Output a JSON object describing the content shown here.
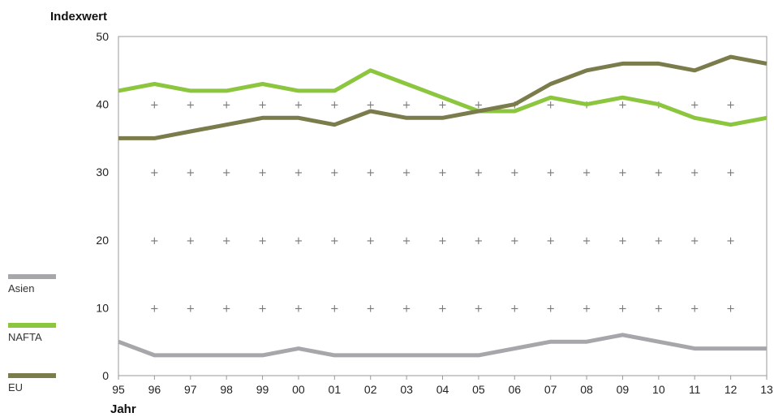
{
  "chart_data": {
    "type": "line",
    "ylabel": "Indexwert",
    "xlabel": "Jahr",
    "x": [
      "95",
      "96",
      "97",
      "98",
      "99",
      "00",
      "01",
      "02",
      "03",
      "04",
      "05",
      "06",
      "07",
      "08",
      "09",
      "10",
      "11",
      "12",
      "13"
    ],
    "ylim": [
      0,
      50
    ],
    "yticks": [
      0,
      10,
      20,
      30,
      40,
      50
    ],
    "grid": "plus markers",
    "legend": "left",
    "series": [
      {
        "name": "Asien",
        "color": "#a7a6ab",
        "values": [
          5,
          3,
          3,
          3,
          3,
          4,
          3,
          3,
          3,
          3,
          3,
          4,
          5,
          5,
          6,
          5,
          4,
          4,
          4
        ]
      },
      {
        "name": "NAFTA",
        "color": "#8cc63f",
        "values": [
          42,
          43,
          42,
          42,
          43,
          42,
          42,
          45,
          43,
          41,
          39,
          39,
          41,
          40,
          41,
          40,
          38,
          37,
          38
        ]
      },
      {
        "name": "EU",
        "color": "#7b7c4c",
        "values": [
          35,
          35,
          36,
          37,
          38,
          38,
          37,
          39,
          38,
          38,
          39,
          40,
          43,
          45,
          46,
          46,
          45,
          47,
          46
        ]
      }
    ]
  }
}
